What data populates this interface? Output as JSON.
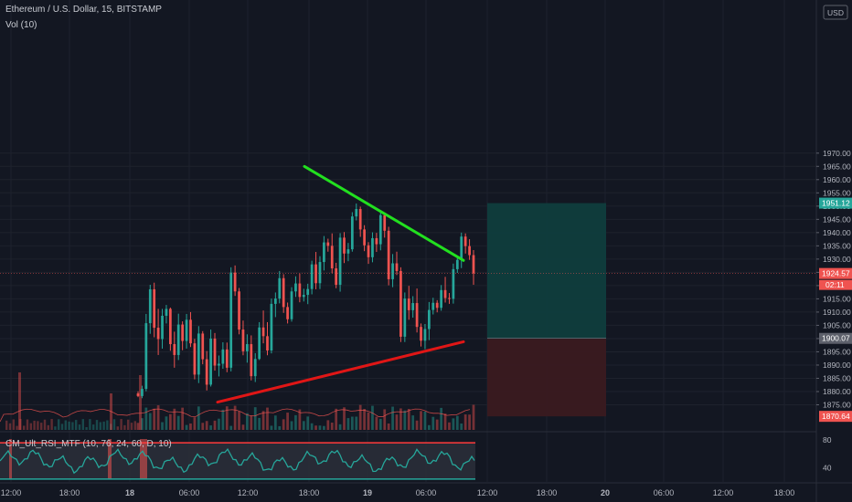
{
  "header": {
    "title": "Ethereum / U.S. Dollar, 15, BITSTAMP",
    "volume_label": "Vol (10)",
    "currency": "USD"
  },
  "indicator": {
    "label": "CM_Ult_RSI_MTF (10, 76, 24, 60, D, 10)",
    "ticks": [
      "80",
      "40"
    ]
  },
  "badges": {
    "target_price": "1951.12",
    "last_price": "1924.57",
    "countdown": "02:11",
    "entry_price": "1900.07",
    "stop_price": "1870.64"
  },
  "colors": {
    "background": "#131722",
    "up_candle": "#26a69a",
    "down_candle": "#ef5350",
    "resistance_line": "#22e01f",
    "support_line": "#e01616",
    "profit_zone": "#0f3d3d",
    "loss_zone": "#3a1a20",
    "rsi_line": "#26a69a",
    "rsi_bounds": "#ff3b3b"
  },
  "chart_data": {
    "type": "candlestick",
    "title": "Ethereum / U.S. Dollar, 15, BITSTAMP",
    "price_axis": {
      "ticks": [
        1875,
        1880,
        1885,
        1890,
        1895,
        1900,
        1905,
        1910,
        1915,
        1920,
        1925,
        1930,
        1935,
        1940,
        1945,
        1950,
        1955,
        1960,
        1965,
        1970
      ],
      "tick_labels": [
        "1875.00",
        "1880.00",
        "1885.00",
        "1890.00",
        "1895.00",
        "1900.00",
        "1905.00",
        "1910.00",
        "1915.00",
        "1920.00",
        "1925.00",
        "1930.00",
        "1935.00",
        "1940.00",
        "1945.00",
        "1950.00",
        "1955.00",
        "1960.00",
        "1965.00",
        "1970.00"
      ],
      "ylim": [
        1868,
        1973
      ]
    },
    "time_axis": {
      "labels": [
        "12:00",
        "18:00",
        "18",
        "06:00",
        "12:00",
        "18:00",
        "19",
        "06:00",
        "12:00",
        "18:00",
        "20",
        "06:00",
        "12:00",
        "18:00"
      ]
    },
    "candles": [
      [
        1879.3,
        1880.1,
        1877.9,
        1878.3
      ],
      [
        1878.3,
        1882.2,
        1877.5,
        1881.0
      ],
      [
        1881.0,
        1909.3,
        1880.1,
        1905.8
      ],
      [
        1905.8,
        1920.3,
        1901.8,
        1918.6
      ],
      [
        1918.6,
        1921.1,
        1900.5,
        1904.1
      ],
      [
        1904.1,
        1911.2,
        1893.8,
        1899.8
      ],
      [
        1899.8,
        1911.2,
        1896.2,
        1908.6
      ],
      [
        1908.6,
        1912.7,
        1905.7,
        1911.2
      ],
      [
        1911.2,
        1911.7,
        1895.4,
        1897.9
      ],
      [
        1897.9,
        1902.6,
        1889.0,
        1893.8
      ],
      [
        1893.8,
        1909.4,
        1891.9,
        1905.3
      ],
      [
        1905.3,
        1906.5,
        1895.6,
        1899.1
      ],
      [
        1899.1,
        1909.3,
        1896.2,
        1907.1
      ],
      [
        1907.1,
        1910.0,
        1896.8,
        1898.2
      ],
      [
        1898.2,
        1899.9,
        1884.6,
        1886.4
      ],
      [
        1886.4,
        1904.7,
        1883.2,
        1901.9
      ],
      [
        1901.9,
        1902.8,
        1890.3,
        1892.2
      ],
      [
        1892.2,
        1895.3,
        1880.4,
        1882.6
      ],
      [
        1882.6,
        1903.4,
        1881.9,
        1900.0
      ],
      [
        1900.0,
        1902.1,
        1887.9,
        1889.8
      ],
      [
        1889.8,
        1893.6,
        1885.7,
        1890.5
      ],
      [
        1890.5,
        1898.6,
        1888.6,
        1895.9
      ],
      [
        1895.9,
        1898.5,
        1887.3,
        1889.0
      ],
      [
        1889.0,
        1926.9,
        1887.6,
        1924.9
      ],
      [
        1924.9,
        1927.6,
        1916.1,
        1917.8
      ],
      [
        1917.8,
        1919.1,
        1901.6,
        1903.4
      ],
      [
        1903.4,
        1906.8,
        1893.7,
        1895.2
      ],
      [
        1895.2,
        1901.6,
        1890.9,
        1897.9
      ],
      [
        1897.9,
        1901.2,
        1884.2,
        1885.8
      ],
      [
        1885.8,
        1894.5,
        1883.6,
        1892.3
      ],
      [
        1892.3,
        1906.2,
        1891.9,
        1904.2
      ],
      [
        1904.2,
        1910.6,
        1898.2,
        1900.9
      ],
      [
        1900.9,
        1906.2,
        1893.7,
        1895.5
      ],
      [
        1895.5,
        1915.1,
        1894.4,
        1913.1
      ],
      [
        1913.1,
        1917.4,
        1908.1,
        1915.1
      ],
      [
        1915.1,
        1925.5,
        1913.3,
        1922.8
      ],
      [
        1922.8,
        1924.3,
        1909.7,
        1911.9
      ],
      [
        1911.9,
        1913.6,
        1905.7,
        1907.3
      ],
      [
        1907.3,
        1919.4,
        1906.4,
        1917.8
      ],
      [
        1917.8,
        1923.5,
        1915.7,
        1920.8
      ],
      [
        1920.8,
        1924.6,
        1913.7,
        1915.7
      ],
      [
        1915.7,
        1918.8,
        1914.0,
        1916.5
      ],
      [
        1916.5,
        1920.7,
        1913.0,
        1918.7
      ],
      [
        1918.7,
        1929.4,
        1916.7,
        1928.0
      ],
      [
        1928.0,
        1932.7,
        1918.6,
        1920.9
      ],
      [
        1920.9,
        1931.1,
        1918.7,
        1928.9
      ],
      [
        1928.9,
        1938.7,
        1925.7,
        1936.3
      ],
      [
        1936.3,
        1937.7,
        1932.8,
        1935.0
      ],
      [
        1935.0,
        1939.7,
        1924.7,
        1926.5
      ],
      [
        1926.5,
        1928.6,
        1919.0,
        1920.3
      ],
      [
        1920.3,
        1939.8,
        1917.7,
        1938.1
      ],
      [
        1938.1,
        1940.2,
        1928.5,
        1932.1
      ],
      [
        1932.1,
        1936.1,
        1929.2,
        1933.7
      ],
      [
        1933.7,
        1947.7,
        1932.8,
        1946.1
      ],
      [
        1946.1,
        1951.0,
        1944.6,
        1948.9
      ],
      [
        1948.9,
        1949.8,
        1938.4,
        1941.2
      ],
      [
        1941.2,
        1942.8,
        1933.0,
        1935.2
      ],
      [
        1935.2,
        1936.4,
        1928.2,
        1930.7
      ],
      [
        1930.7,
        1940.1,
        1928.8,
        1937.9
      ],
      [
        1937.9,
        1939.9,
        1932.7,
        1935.6
      ],
      [
        1935.6,
        1948.2,
        1933.3,
        1946.6
      ],
      [
        1946.6,
        1947.6,
        1938.1,
        1940.7
      ],
      [
        1940.7,
        1942.2,
        1920.1,
        1922.4
      ],
      [
        1922.4,
        1931.9,
        1919.4,
        1928.4
      ],
      [
        1928.4,
        1932.8,
        1924.0,
        1925.5
      ],
      [
        1925.5,
        1926.9,
        1898.7,
        1900.7
      ],
      [
        1900.7,
        1917.4,
        1898.7,
        1915.1
      ],
      [
        1915.1,
        1919.9,
        1907.1,
        1910.7
      ],
      [
        1910.7,
        1916.0,
        1907.9,
        1913.4
      ],
      [
        1913.4,
        1918.9,
        1902.3,
        1904.4
      ],
      [
        1904.4,
        1905.7,
        1897.0,
        1899.2
      ],
      [
        1899.2,
        1905.5,
        1896.0,
        1903.6
      ],
      [
        1903.6,
        1913.8,
        1899.4,
        1910.8
      ],
      [
        1910.8,
        1915.4,
        1909.1,
        1913.5
      ],
      [
        1913.5,
        1914.5,
        1909.9,
        1911.6
      ],
      [
        1911.6,
        1920.2,
        1910.5,
        1918.3
      ],
      [
        1918.3,
        1923.3,
        1913.6,
        1915.3
      ],
      [
        1915.3,
        1917.2,
        1913.1,
        1915.0
      ],
      [
        1915.0,
        1928.3,
        1913.2,
        1926.2
      ],
      [
        1926.2,
        1930.8,
        1924.8,
        1929.7
      ],
      [
        1929.7,
        1940.0,
        1926.6,
        1938.5
      ],
      [
        1938.5,
        1939.7,
        1932.1,
        1934.9
      ],
      [
        1934.9,
        1937.5,
        1929.7,
        1931.5
      ],
      [
        1931.5,
        1933.4,
        1920.3,
        1924.6
      ]
    ],
    "trendlines": [
      {
        "name": "resistance",
        "from": [
          1965.0
        ],
        "to": [
          1929.5
        ]
      },
      {
        "name": "support",
        "from": [
          1876.0
        ],
        "to": [
          1898.8
        ]
      }
    ],
    "position": {
      "entry": 1900.07,
      "target": 1951.12,
      "stop": 1870.64
    },
    "rsi": {
      "upper": 76,
      "lower": 24,
      "axis_ticks": [
        80,
        40
      ]
    }
  }
}
